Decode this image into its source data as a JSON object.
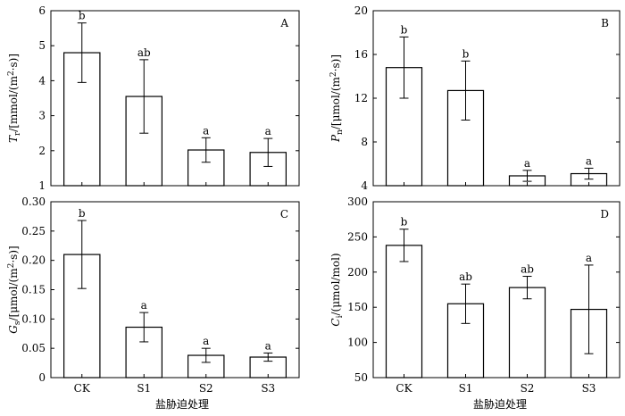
{
  "figure": {
    "xlabel": "盐胁迫处理",
    "bar_fill": "#ffffff",
    "stroke": "#000000"
  },
  "chart_data": [
    {
      "type": "bar",
      "panel": "A",
      "ylabel_main": "T",
      "ylabel_sub": "r",
      "ylabel_rest": "/[mmol/(m",
      "ylabel_sup": "2",
      "ylabel_end": "·s)]",
      "categories": [
        "CK",
        "S1",
        "S2",
        "S3"
      ],
      "values": [
        4.8,
        3.55,
        2.02,
        1.95
      ],
      "errors": [
        0.85,
        1.05,
        0.35,
        0.4
      ],
      "letters": [
        "b",
        "ab",
        "a",
        "a"
      ],
      "ylim": [
        1,
        6
      ],
      "yticks": [
        "1",
        "2",
        "3",
        "4",
        "5",
        "6"
      ],
      "ytick_values": [
        1,
        2,
        3,
        4,
        5,
        6
      ],
      "show_xticklabels": false
    },
    {
      "type": "bar",
      "panel": "B",
      "ylabel_main": "P",
      "ylabel_sub": "n",
      "ylabel_rest": "/[μmol/(m",
      "ylabel_sup": "2",
      "ylabel_end": "·s)]",
      "categories": [
        "CK",
        "S1",
        "S2",
        "S3"
      ],
      "values": [
        14.8,
        12.7,
        4.9,
        5.1
      ],
      "errors": [
        2.8,
        2.7,
        0.5,
        0.5
      ],
      "letters": [
        "b",
        "b",
        "a",
        "a"
      ],
      "ylim": [
        4,
        20
      ],
      "yticks": [
        "4",
        "8",
        "12",
        "16",
        "20"
      ],
      "ytick_values": [
        4,
        8,
        12,
        16,
        20
      ],
      "show_xticklabels": false
    },
    {
      "type": "bar",
      "panel": "C",
      "ylabel_main": "G",
      "ylabel_sub": "s",
      "ylabel_rest": "/[μmol/(m",
      "ylabel_sup": "2",
      "ylabel_end": "·s)]",
      "categories": [
        "CK",
        "S1",
        "S2",
        "S3"
      ],
      "values": [
        0.21,
        0.086,
        0.038,
        0.035
      ],
      "errors": [
        0.058,
        0.025,
        0.012,
        0.007
      ],
      "letters": [
        "b",
        "a",
        "a",
        "a"
      ],
      "ylim": [
        0,
        0.3
      ],
      "yticks": [
        "0",
        "0.05",
        "0.10",
        "0.15",
        "0.20",
        "0.25",
        "0.30"
      ],
      "ytick_values": [
        0,
        0.05,
        0.1,
        0.15,
        0.2,
        0.25,
        0.3
      ],
      "show_xticklabels": true
    },
    {
      "type": "bar",
      "panel": "D",
      "ylabel_main": "C",
      "ylabel_sub": "i",
      "ylabel_rest": "/(μmol/mol)",
      "ylabel_sup": "",
      "ylabel_end": "",
      "categories": [
        "CK",
        "S1",
        "S2",
        "S3"
      ],
      "values": [
        238,
        155,
        178,
        147
      ],
      "errors": [
        23,
        28,
        16,
        63
      ],
      "letters": [
        "b",
        "ab",
        "ab",
        "a"
      ],
      "ylim": [
        50,
        300
      ],
      "yticks": [
        "50",
        "100",
        "150",
        "200",
        "250",
        "300"
      ],
      "ytick_values": [
        50,
        100,
        150,
        200,
        250,
        300
      ],
      "show_xticklabels": true
    }
  ]
}
